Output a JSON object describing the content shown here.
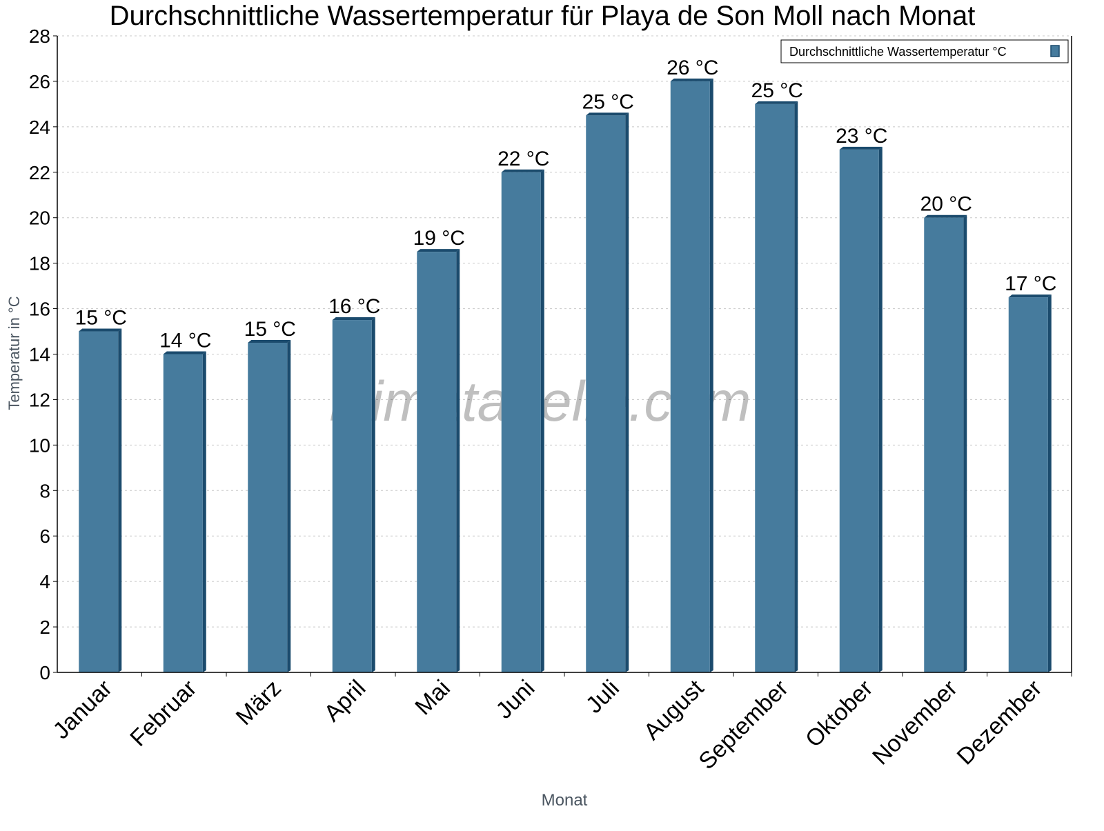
{
  "chart_data": {
    "type": "bar",
    "title": "Durchschnittliche Wassertemperatur für Playa de Son Moll nach Monat",
    "xlabel": "Monat",
    "ylabel": "Temperatur in °C",
    "ylim": [
      0,
      28
    ],
    "yticks": [
      0,
      2,
      4,
      6,
      8,
      10,
      12,
      14,
      16,
      18,
      20,
      22,
      24,
      26,
      28
    ],
    "grid": true,
    "legend_position": "top-right",
    "categories": [
      "Januar",
      "Februar",
      "März",
      "April",
      "Mai",
      "Juni",
      "Juli",
      "August",
      "September",
      "Oktober",
      "November",
      "Dezember"
    ],
    "series": [
      {
        "name": "Durchschnittliche Wassertemperatur °C",
        "values": [
          15,
          14,
          14.5,
          15.5,
          18.5,
          22,
          24.5,
          26,
          25,
          23,
          20,
          16.5
        ],
        "labels": [
          "15 °C",
          "14 °C",
          "15 °C",
          "16 °C",
          "19 °C",
          "22 °C",
          "25 °C",
          "26 °C",
          "25 °C",
          "23 °C",
          "20 °C",
          "17 °C"
        ],
        "color": "#467b9d",
        "shade_color": "#1b4b6d"
      }
    ],
    "watermark": "klimatabelle.com"
  }
}
